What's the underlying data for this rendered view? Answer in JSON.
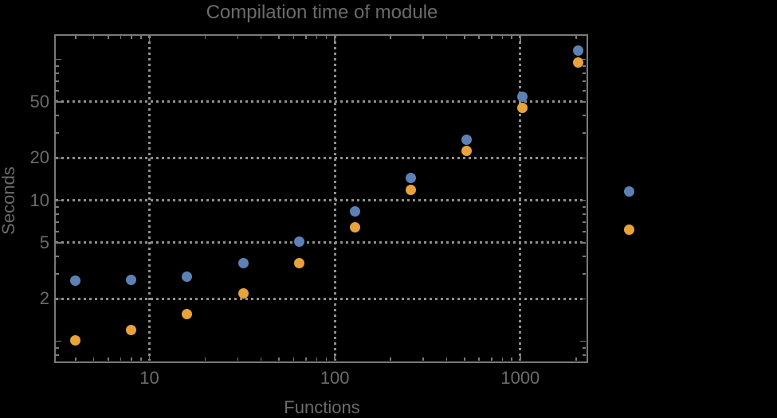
{
  "chart_data": {
    "type": "scatter",
    "title": "Compilation time of module",
    "xlabel": "Functions",
    "ylabel": "Seconds",
    "x_scale": "log",
    "y_scale": "log",
    "xlim": [
      3.095,
      2300
    ],
    "ylim": [
      0.71,
      149
    ],
    "grid": {
      "style": "dotted",
      "x_values": [
        10,
        100,
        1000
      ],
      "y_values": [
        2,
        5,
        10,
        20,
        50
      ]
    },
    "x": [
      4,
      8,
      16,
      32,
      64,
      128,
      256,
      512,
      1024,
      2048
    ],
    "series": [
      {
        "name": "blue",
        "color": "#5E81B5",
        "values": [
          2.7,
          2.73,
          2.88,
          3.6,
          5.1,
          8.3,
          14.4,
          27.0,
          54.5,
          116.0
        ]
      },
      {
        "name": "orange",
        "color": "#E8A33D",
        "values": [
          1.02,
          1.2,
          1.55,
          2.2,
          3.6,
          6.4,
          11.9,
          22.5,
          45.3,
          94.8
        ]
      }
    ],
    "x_major_ticks": [
      10,
      100,
      1000
    ],
    "x_tick_labels": [
      "10",
      "100",
      "1000"
    ],
    "x_minor_ticks": [
      4,
      5,
      6,
      7,
      8,
      9,
      20,
      30,
      40,
      50,
      60,
      70,
      80,
      90,
      200,
      300,
      400,
      500,
      600,
      700,
      800,
      900,
      2000
    ],
    "y_major_ticks": [
      2,
      5,
      10,
      20,
      50
    ],
    "y_tick_labels": [
      "2",
      "5",
      "10",
      "20",
      "50"
    ],
    "y_unlabeled_major_ticks": [
      1,
      100
    ],
    "y_minor_ticks": [
      0.8,
      0.9,
      3,
      4,
      6,
      7,
      8,
      9,
      30,
      40,
      60,
      70,
      80,
      90
    ],
    "legend": {
      "position": "outside-right",
      "labels_visible": false,
      "entries": [
        {
          "marker": "disk",
          "color": "#5E81B5"
        },
        {
          "marker": "disk",
          "color": "#E8A33D"
        }
      ]
    }
  },
  "colors": {
    "background": "#000000",
    "frame": "#7a7a7a",
    "grid": "#8f8f8f",
    "text": "#6b6b6b"
  }
}
